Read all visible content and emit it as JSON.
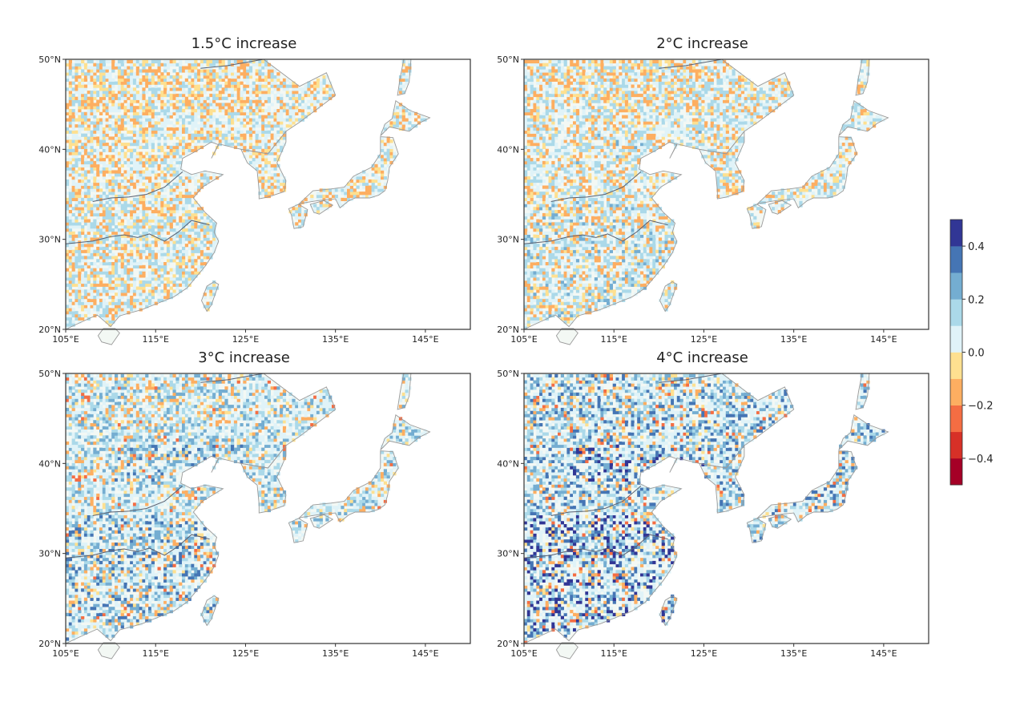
{
  "panels": [
    {
      "title": "1.5°C increase",
      "intensity": 0.25,
      "dry": 0.55
    },
    {
      "title": "2°C increase",
      "intensity": 0.35,
      "dry": 0.45
    },
    {
      "title": "3°C increase",
      "intensity": 0.65,
      "dry": 0.25
    },
    {
      "title": "4°C increase",
      "intensity": 0.95,
      "dry": 0.2
    }
  ],
  "lat_ticks": [
    "50°N",
    "40°N",
    "30°N",
    "20°N"
  ],
  "lon_ticks": [
    "105°E",
    "115°E",
    "125°E",
    "135°E",
    "145°E"
  ],
  "colorbar": {
    "ticks": [
      "0.4",
      "0.2",
      "0.0",
      "−0.2",
      "−0.4"
    ],
    "min": -0.5,
    "max": 0.5,
    "colors": [
      "#a50026",
      "#d73027",
      "#f46d43",
      "#fdae61",
      "#fee090",
      "#e0f3f8",
      "#abd9e9",
      "#74add1",
      "#4575b4",
      "#313695"
    ]
  }
}
